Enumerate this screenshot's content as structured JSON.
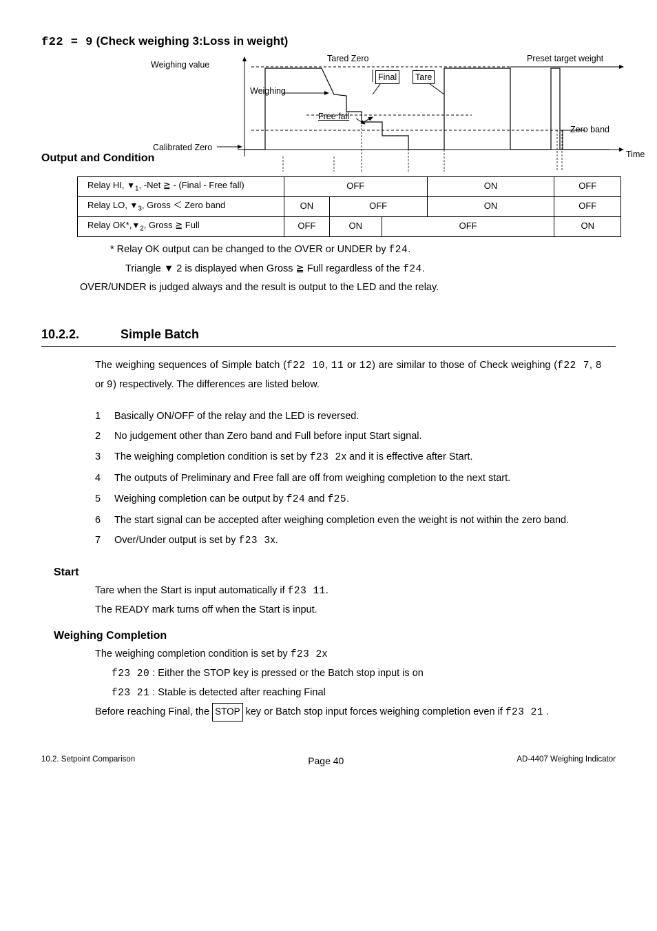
{
  "title": {
    "code": "f22 = 9",
    "text": "(Check weighing 3:Loss in weight)"
  },
  "diagram": {
    "labels": {
      "weighing_value": "Weighing value",
      "tared_zero": "Tared Zero",
      "preset_target": "Preset target weight",
      "weighing": "Weighing",
      "final": "Final",
      "tare": "Tare",
      "free_fall": "Free fall",
      "zero_band": "Zero band",
      "calibrated_zero": "Calibrated Zero",
      "time": "Time"
    },
    "output_condition_heading": "Output and Condition",
    "colors": {
      "line": "#000000",
      "dash": "#000000"
    }
  },
  "relay_table": {
    "rows": [
      {
        "label_prefix": "Relay HI, ",
        "tri": "▼",
        "tri_sub": "1",
        "label_suffix": ", -Net ≧ - (Final - Free fall)",
        "cells": [
          "OFF",
          "ON",
          "OFF"
        ],
        "spans": [
          3,
          2,
          1
        ]
      },
      {
        "label_prefix": "Relay LO, ",
        "tri": "▼",
        "tri_sub": "3",
        "label_suffix": ",   Gross ＜ Zero band",
        "cells": [
          "ON",
          "OFF",
          "ON",
          "OFF"
        ],
        "spans": [
          1,
          2,
          2,
          1
        ]
      },
      {
        "label_prefix": "Relay OK*,",
        "tri": "▼",
        "tri_sub": "2",
        "label_suffix": ",   Gross ≧ Full",
        "cells": [
          "OFF",
          "ON",
          "OFF",
          "ON"
        ],
        "spans": [
          1,
          1,
          3,
          1
        ]
      }
    ]
  },
  "notes": {
    "line1_pre": "*   Relay OK output can be changed to the OVER or UNDER by ",
    "line1_code": "f24",
    "line1_post": ".",
    "line2_pre": "Triangle ▼ 2 is displayed when Gross ≧ Full regardless of the ",
    "line2_code": "f24",
    "line2_post": ".",
    "line3": "OVER/UNDER is judged always and the result is output to the LED and the relay."
  },
  "section": {
    "number": "10.2.2.",
    "title": "Simple Batch",
    "para1_a": "The weighing sequences of Simple batch (",
    "para1_code1": "f22  10",
    "para1_b": ", ",
    "para1_code2": "11",
    "para1_c": " or ",
    "para1_code3": "12",
    "para1_d": ") are similar to those of Check weighing (",
    "para1_code4": "f22  7",
    "para1_e": ", ",
    "para1_code5": "8",
    "para1_f": " or ",
    "para1_code6": "9",
    "para1_g": ") respectively. The differences are listed below."
  },
  "diffs": [
    {
      "text_a": "Basically ON/OFF of the relay and the LED is reversed."
    },
    {
      "text_a": "No judgement other than Zero band and Full before input Start signal."
    },
    {
      "text_a": "The weighing completion condition is set by ",
      "code1": "f23  2",
      "text_b": "x and it is effective after Start."
    },
    {
      "text_a": "The outputs of Preliminary and Free fall are off from weighing completion to the next start."
    },
    {
      "text_a": "Weighing completion can be output by ",
      "code1": "f24",
      "text_b": " and ",
      "code2": "f25",
      "text_c": "."
    },
    {
      "text_a": "The start signal can be accepted after weighing completion even the weight is not within the zero band."
    },
    {
      "text_a": "Over/Under output is set by ",
      "code1": "f23   3",
      "text_b": "x."
    }
  ],
  "start": {
    "heading": "Start",
    "line1_a": "Tare when the Start is input automatically if ",
    "line1_code": "f23  11",
    "line1_b": ".",
    "line2": "The READY mark turns off when the Start is input."
  },
  "wc": {
    "heading": "Weighing Completion",
    "line1_a": "The weighing completion condition is set by ",
    "line1_code": "f23   2",
    "line1_b": "x",
    "opt1_code": "f23  20",
    "opt1_text": " : Either the STOP key is pressed or the Batch stop input is on",
    "opt2_code": "f23  21",
    "opt2_text": " : Stable is detected after reaching Final",
    "line3_a": "Before reaching Final, the ",
    "line3_key": "STOP",
    "line3_b": " key or Batch stop input forces weighing completion even if ",
    "line3_code": "f23 21",
    "line3_c": " ."
  },
  "footer": {
    "left": "10.2. Setpoint Comparison",
    "mid": "Page 40",
    "right": "AD-4407 Weighing Indicator"
  }
}
